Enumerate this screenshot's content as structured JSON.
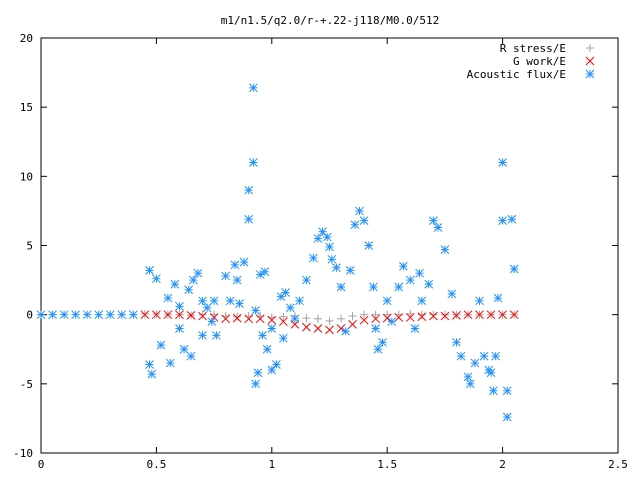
{
  "chart_data": {
    "type": "scatter",
    "title": "m1/n1.5/q2.0/r-+.22-j118/M0.0/512",
    "xlabel": "",
    "ylabel": "",
    "xlim": [
      0,
      2.5
    ],
    "ylim": [
      -10,
      20
    ],
    "x_ticks": [
      0,
      0.5,
      1,
      1.5,
      2,
      2.5
    ],
    "y_ticks": [
      -10,
      -5,
      0,
      5,
      10,
      15,
      20
    ],
    "grid": false,
    "legend_position": "top-right",
    "series": [
      {
        "name": "R stress/E",
        "marker": "plus",
        "color": "#a0a0a0",
        "x": [
          0.45,
          0.5,
          0.55,
          0.6,
          0.65,
          0.7,
          0.75,
          0.8,
          0.85,
          0.9,
          0.95,
          1.0,
          1.05,
          1.1,
          1.15,
          1.2,
          1.25,
          1.3,
          1.35,
          1.4,
          1.45,
          1.5,
          1.55,
          1.6,
          1.65,
          1.7,
          1.75,
          1.8,
          1.85,
          1.9,
          1.95,
          2.0,
          2.05
        ],
        "y": [
          0.05,
          0.05,
          0.0,
          0.0,
          -0.05,
          0.0,
          0.0,
          -0.1,
          -0.15,
          -0.1,
          -0.1,
          -0.2,
          -0.15,
          -0.1,
          -0.25,
          -0.3,
          -0.45,
          -0.3,
          -0.1,
          0.0,
          0.0,
          0.0,
          0.0,
          0.05,
          0.0,
          0.0,
          0.0,
          0.0,
          0.0,
          0.0,
          0.0,
          0.0,
          0.0
        ]
      },
      {
        "name": "G work/E",
        "marker": "cross",
        "color": "#ff0000",
        "x": [
          0.45,
          0.5,
          0.55,
          0.6,
          0.65,
          0.7,
          0.75,
          0.8,
          0.85,
          0.9,
          0.95,
          1.0,
          1.05,
          1.1,
          1.15,
          1.2,
          1.25,
          1.3,
          1.35,
          1.4,
          1.45,
          1.5,
          1.55,
          1.6,
          1.65,
          1.7,
          1.75,
          1.8,
          1.85,
          1.9,
          1.95,
          2.0,
          2.05
        ],
        "y": [
          0.0,
          0.0,
          0.0,
          0.0,
          -0.05,
          -0.1,
          -0.2,
          -0.3,
          -0.25,
          -0.3,
          -0.3,
          -0.4,
          -0.5,
          -0.7,
          -0.9,
          -1.0,
          -1.1,
          -1.0,
          -0.7,
          -0.4,
          -0.3,
          -0.25,
          -0.2,
          -0.2,
          -0.15,
          -0.1,
          -0.1,
          -0.05,
          0.0,
          0.0,
          0.0,
          0.0,
          0.0
        ]
      },
      {
        "name": "Acoustic flux/E",
        "marker": "star",
        "color": "#1e90ff",
        "x": [
          0.0,
          0.05,
          0.1,
          0.15,
          0.2,
          0.25,
          0.3,
          0.35,
          0.4,
          0.47,
          0.47,
          0.48,
          0.5,
          0.52,
          0.55,
          0.56,
          0.58,
          0.6,
          0.6,
          0.62,
          0.64,
          0.65,
          0.66,
          0.68,
          0.7,
          0.7,
          0.72,
          0.74,
          0.75,
          0.76,
          0.8,
          0.82,
          0.84,
          0.85,
          0.86,
          0.88,
          0.9,
          0.9,
          0.92,
          0.92,
          0.93,
          0.93,
          0.94,
          0.95,
          0.96,
          0.97,
          0.98,
          1.0,
          1.0,
          1.02,
          1.04,
          1.05,
          1.06,
          1.08,
          1.1,
          1.12,
          1.15,
          1.18,
          1.2,
          1.22,
          1.24,
          1.25,
          1.26,
          1.28,
          1.3,
          1.32,
          1.34,
          1.36,
          1.38,
          1.4,
          1.42,
          1.44,
          1.45,
          1.46,
          1.48,
          1.5,
          1.52,
          1.55,
          1.57,
          1.6,
          1.62,
          1.64,
          1.65,
          1.68,
          1.7,
          1.72,
          1.75,
          1.78,
          1.8,
          1.82,
          1.85,
          1.86,
          1.88,
          1.9,
          1.92,
          1.94,
          1.95,
          1.96,
          1.97,
          1.98,
          2.0,
          2.0,
          2.02,
          2.02,
          2.04,
          2.05
        ],
        "y": [
          0.0,
          0.0,
          0.0,
          0.0,
          0.0,
          0.0,
          0.0,
          0.0,
          0.0,
          -3.6,
          3.2,
          -4.3,
          2.6,
          -2.2,
          1.2,
          -3.5,
          2.2,
          -1.0,
          0.6,
          -2.5,
          1.8,
          -3.0,
          2.5,
          3.0,
          1.0,
          -1.5,
          0.5,
          -0.5,
          1.0,
          -1.5,
          2.8,
          1.0,
          3.6,
          2.5,
          0.8,
          3.8,
          6.9,
          9.0,
          11.0,
          16.4,
          -5.0,
          0.3,
          -4.2,
          2.9,
          -1.5,
          3.1,
          -2.5,
          -4.0,
          -1.0,
          -3.6,
          1.3,
          -1.7,
          1.6,
          0.5,
          -0.3,
          1.0,
          2.5,
          4.1,
          5.5,
          6.0,
          5.6,
          4.9,
          4.0,
          3.4,
          2.0,
          -1.2,
          3.2,
          6.5,
          7.5,
          6.8,
          5.0,
          2.0,
          -1.0,
          -2.5,
          -2.0,
          1.0,
          -0.5,
          2.0,
          3.5,
          2.5,
          -1.0,
          3.0,
          1.0,
          2.2,
          6.8,
          6.3,
          4.7,
          1.5,
          -2.0,
          -3.0,
          -4.5,
          -5.0,
          -3.5,
          1.0,
          -3.0,
          -4.0,
          -4.2,
          -5.5,
          -3.0,
          1.2,
          11.0,
          6.8,
          -5.5,
          -7.4,
          6.9,
          3.3
        ]
      }
    ]
  }
}
